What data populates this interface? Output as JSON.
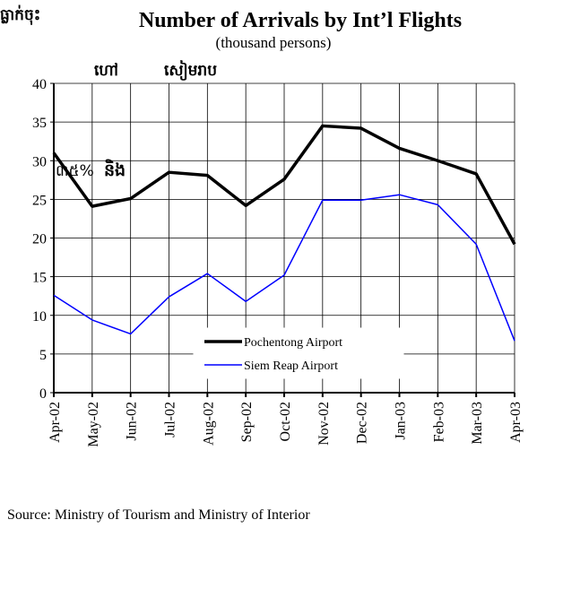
{
  "chart_data": {
    "type": "line",
    "title": "Number of Arrivals by Int’l Flights",
    "subtitle": "(thousand persons)",
    "source": "Source: Ministry of Tourism and Ministry of Interior",
    "annotations": [
      "ធ្លាក់ចុះ",
      "ហៅ",
      "សៀមរាប",
      "៣៥%",
      "និង"
    ],
    "categories": [
      "Apr-02",
      "May-02",
      "Jun-02",
      "Jul-02",
      "Aug-02",
      "Sep-02",
      "Oct-02",
      "Nov-02",
      "Dec-02",
      "Jan-03",
      "Feb-03",
      "Mar-03",
      "Apr-03"
    ],
    "series": [
      {
        "name": "Pochentong Airport",
        "color": "#000000",
        "values": [
          31,
          24.1,
          25.1,
          28.5,
          28.1,
          24.2,
          27.6,
          34.5,
          34.2,
          31.6,
          30,
          28.3,
          19.2
        ]
      },
      {
        "name": "Siem Reap Airport",
        "color": "#0000ff",
        "values": [
          12.6,
          9.4,
          7.6,
          12.4,
          15.4,
          11.8,
          15.2,
          24.9,
          24.9,
          25.6,
          24.3,
          19.2,
          6.7
        ]
      }
    ],
    "ylim": [
      0,
      40
    ],
    "yticks": [
      0,
      5,
      10,
      15,
      20,
      25,
      30,
      35,
      40
    ],
    "grid": true
  }
}
